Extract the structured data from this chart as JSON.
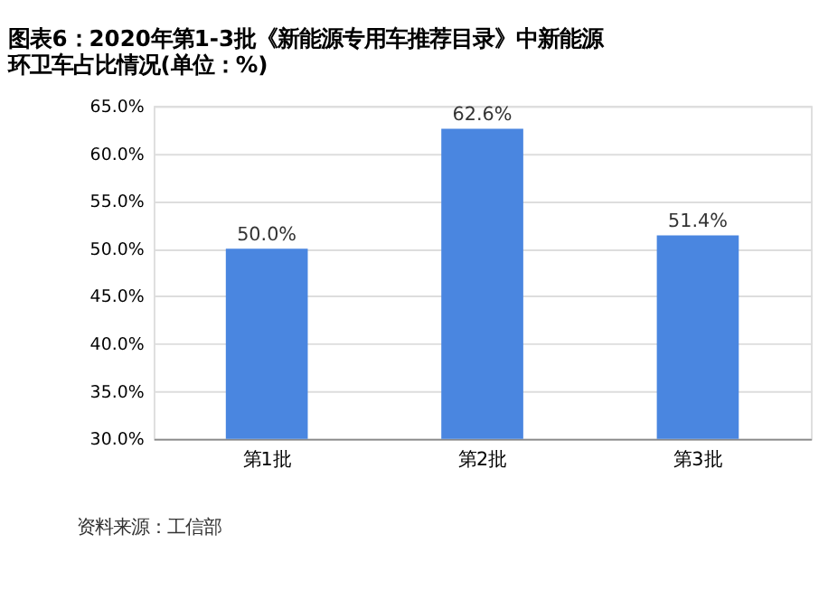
{
  "chart_data": {
    "type": "bar",
    "title": "图表6：2020年第1-3批《新能源专用车推荐目录》中新能源环卫车占比情况(单位：%)",
    "categories": [
      "第1批",
      "第2批",
      "第3批"
    ],
    "values": [
      50.0,
      62.6,
      51.4
    ],
    "value_labels": [
      "50.0%",
      "62.6%",
      "51.4%"
    ],
    "color": "#4a86e0",
    "ylim": [
      30,
      65
    ],
    "yticks": [
      {
        "value": 30,
        "label": "30.0%"
      },
      {
        "value": 35,
        "label": "35.0%"
      },
      {
        "value": 40,
        "label": "40.0%"
      },
      {
        "value": 45,
        "label": "45.0%"
      },
      {
        "value": 50,
        "label": "50.0%"
      },
      {
        "value": 55,
        "label": "55.0%"
      },
      {
        "value": 60,
        "label": "60.0%"
      },
      {
        "value": 65,
        "label": "65.0%"
      }
    ],
    "grid": "y",
    "annotations": [
      "资料来源：工信部"
    ]
  }
}
